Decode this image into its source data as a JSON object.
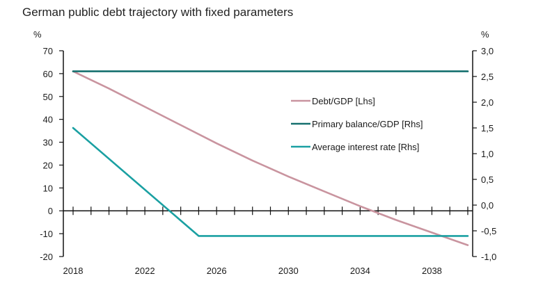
{
  "chart_data": {
    "type": "line",
    "title": "German public debt trajectory with fixed parameters",
    "left_unit": "%",
    "right_unit": "%",
    "x_range": [
      2018,
      2040
    ],
    "x_ticks": [
      2018,
      2022,
      2026,
      2030,
      2034,
      2038
    ],
    "left_axis": {
      "range": [
        -20,
        70
      ],
      "ticks": [
        "-20",
        "-10",
        "0",
        "10",
        "20",
        "30",
        "40",
        "50",
        "60",
        "70"
      ]
    },
    "right_axis": {
      "range": [
        -1.0,
        3.0
      ],
      "ticks": [
        "-1,0",
        "-0,5",
        "0,0",
        "0,5",
        "1,0",
        "1,5",
        "2,0",
        "2,5",
        "3,0"
      ]
    },
    "grid": false,
    "legend_position": "right-center",
    "series": [
      {
        "name": "Debt/GDP [Lhs]",
        "axis": "left",
        "color": "#c9949f",
        "x": [
          2018,
          2020,
          2022,
          2024,
          2026,
          2028,
          2030,
          2032,
          2034,
          2036,
          2038,
          2040
        ],
        "y": [
          61,
          53.5,
          45.5,
          37.5,
          29.5,
          22,
          15,
          8.5,
          2,
          -4,
          -9.5,
          -15
        ]
      },
      {
        "name": "Primary balance/GDP [Rhs]",
        "axis": "right",
        "color": "#16706f",
        "x": [
          2018,
          2040
        ],
        "y": [
          2.6,
          2.6
        ]
      },
      {
        "name": "Average interest rate [Rhs]",
        "axis": "right",
        "color": "#1aa0a2",
        "x": [
          2018,
          2025,
          2040
        ],
        "y": [
          1.5,
          -0.6,
          -0.6
        ]
      }
    ]
  }
}
